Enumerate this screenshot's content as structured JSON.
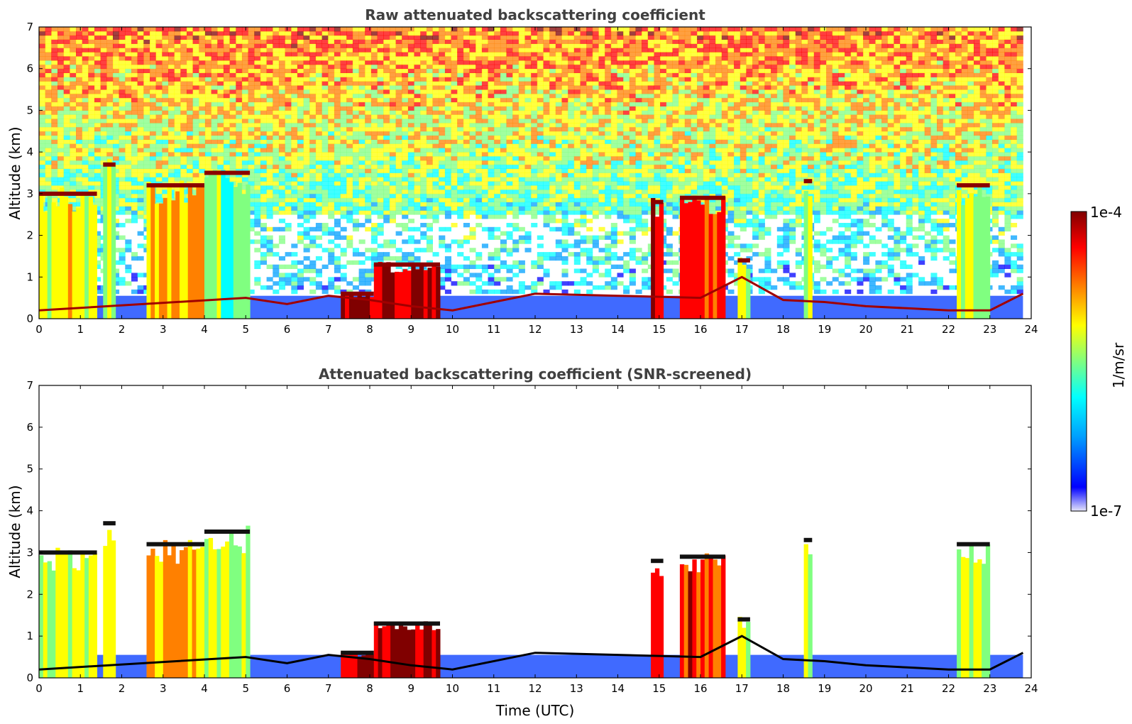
{
  "chart_data": [
    {
      "type": "heatmap",
      "title": "Raw attenuated backscattering coefficient",
      "xlabel": "",
      "ylabel": "Altitude (km)",
      "xlim": [
        0,
        24
      ],
      "ylim": [
        0,
        7
      ],
      "xticks": [
        "0",
        "1",
        "2",
        "3",
        "4",
        "5",
        "6",
        "7",
        "8",
        "9",
        "10",
        "11",
        "12",
        "13",
        "14",
        "15",
        "16",
        "17",
        "18",
        "19",
        "20",
        "21",
        "22",
        "23",
        "24"
      ],
      "yticks": [
        "0",
        "1",
        "2",
        "3",
        "4",
        "5",
        "6",
        "7"
      ],
      "noise_above_clouds": true,
      "cloud_columns": [
        {
          "x0": 0.0,
          "x1": 1.4,
          "top": 3.0,
          "intensity": 0.6
        },
        {
          "x0": 1.55,
          "x1": 1.85,
          "top": 3.7,
          "intensity": 0.55
        },
        {
          "x0": 2.6,
          "x1": 4.0,
          "top": 3.2,
          "intensity": 0.7
        },
        {
          "x0": 4.0,
          "x1": 5.1,
          "top": 3.5,
          "intensity": 0.5
        },
        {
          "x0": 7.3,
          "x1": 8.1,
          "top": 0.6,
          "intensity": 0.95
        },
        {
          "x0": 8.1,
          "x1": 9.7,
          "top": 1.3,
          "intensity": 0.95
        },
        {
          "x0": 14.8,
          "x1": 15.1,
          "top": 2.8,
          "intensity": 0.9
        },
        {
          "x0": 15.5,
          "x1": 16.6,
          "top": 2.9,
          "intensity": 0.85
        },
        {
          "x0": 16.9,
          "x1": 17.2,
          "top": 1.4,
          "intensity": 0.6
        },
        {
          "x0": 18.5,
          "x1": 18.7,
          "top": 3.3,
          "intensity": 0.55
        },
        {
          "x0": 22.2,
          "x1": 23.0,
          "top": 3.2,
          "intensity": 0.55
        }
      ],
      "boundary_layer_top": {
        "x": [
          0,
          5,
          6,
          7,
          8,
          9,
          10,
          12,
          14,
          16,
          17,
          18,
          19,
          20,
          21,
          22,
          23,
          23.8
        ],
        "y": [
          0.2,
          0.5,
          0.35,
          0.55,
          0.45,
          0.3,
          0.2,
          0.6,
          0.55,
          0.5,
          1.0,
          0.45,
          0.4,
          0.3,
          0.25,
          0.2,
          0.2,
          0.6
        ]
      }
    },
    {
      "type": "heatmap",
      "title": "Attenuated backscattering coefficient (SNR-screened)",
      "xlabel": "Time (UTC)",
      "ylabel": "Altitude (km)",
      "xlim": [
        0,
        24
      ],
      "ylim": [
        0,
        7
      ],
      "xticks": [
        "0",
        "1",
        "2",
        "3",
        "4",
        "5",
        "6",
        "7",
        "8",
        "9",
        "10",
        "11",
        "12",
        "13",
        "14",
        "15",
        "16",
        "17",
        "18",
        "19",
        "20",
        "21",
        "22",
        "23",
        "24"
      ],
      "yticks": [
        "0",
        "1",
        "2",
        "3",
        "4",
        "5",
        "6",
        "7"
      ],
      "noise_above_clouds": false,
      "cloud_columns": [
        {
          "x0": 0.0,
          "x1": 1.4,
          "top": 3.0,
          "intensity": 0.6
        },
        {
          "x0": 1.55,
          "x1": 1.85,
          "top": 3.7,
          "intensity": 0.55
        },
        {
          "x0": 2.6,
          "x1": 4.0,
          "top": 3.2,
          "intensity": 0.7
        },
        {
          "x0": 4.0,
          "x1": 5.1,
          "top": 3.5,
          "intensity": 0.5
        },
        {
          "x0": 7.3,
          "x1": 8.1,
          "top": 0.6,
          "intensity": 0.95
        },
        {
          "x0": 8.1,
          "x1": 9.7,
          "top": 1.3,
          "intensity": 0.95
        },
        {
          "x0": 14.8,
          "x1": 15.1,
          "top": 2.8,
          "intensity": 0.9
        },
        {
          "x0": 15.5,
          "x1": 16.6,
          "top": 2.9,
          "intensity": 0.85
        },
        {
          "x0": 16.9,
          "x1": 17.2,
          "top": 1.4,
          "intensity": 0.6
        },
        {
          "x0": 18.5,
          "x1": 18.7,
          "top": 3.3,
          "intensity": 0.55
        },
        {
          "x0": 22.2,
          "x1": 23.0,
          "top": 3.2,
          "intensity": 0.55
        }
      ],
      "boundary_layer_top": {
        "x": [
          0,
          5,
          6,
          7,
          8,
          9,
          10,
          12,
          14,
          16,
          17,
          18,
          19,
          20,
          21,
          22,
          23,
          23.8
        ],
        "y": [
          0.2,
          0.5,
          0.35,
          0.55,
          0.45,
          0.3,
          0.2,
          0.6,
          0.55,
          0.5,
          1.0,
          0.45,
          0.4,
          0.3,
          0.25,
          0.2,
          0.2,
          0.6
        ]
      }
    }
  ],
  "colorbar": {
    "label": "1/m/sr",
    "max_label": "1e-4",
    "min_label": "1e-7",
    "scale": "log",
    "colormap": "jet",
    "colors": [
      "#e6e6fa",
      "#0000ff",
      "#00a0ff",
      "#00ffff",
      "#80ff80",
      "#ffff00",
      "#ff8000",
      "#ff0000",
      "#800000"
    ]
  }
}
